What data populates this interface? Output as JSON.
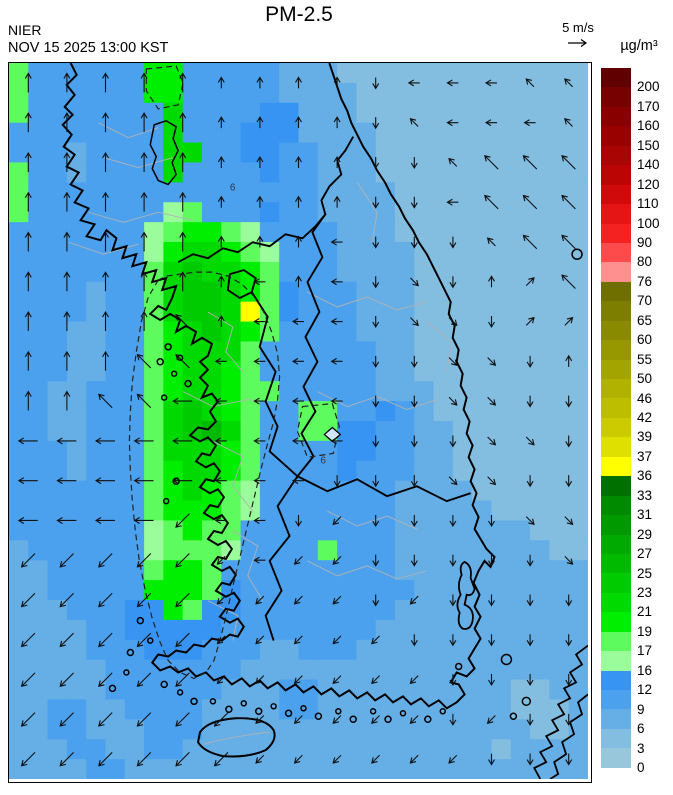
{
  "header": {
    "org": "NIER",
    "datetime": "NOV 15 2025 13:00 KST",
    "title": "PM-2.5"
  },
  "wind_legend": {
    "speed_label": "5 m/s"
  },
  "colorbar": {
    "unit": "µg/m³",
    "labels": [
      "200",
      "170",
      "160",
      "150",
      "140",
      "120",
      "110",
      "100",
      "90",
      "80",
      "76",
      "70",
      "65",
      "60",
      "55",
      "50",
      "46",
      "42",
      "39",
      "37",
      "36",
      "33",
      "31",
      "29",
      "27",
      "25",
      "23",
      "21",
      "19",
      "17",
      "16",
      "12",
      "9",
      "6",
      "3",
      "0"
    ],
    "colors": [
      "#600000",
      "#770000",
      "#880000",
      "#990000",
      "#aa0505",
      "#bb0505",
      "#d00a0a",
      "#e51515",
      "#f52222",
      "#fd4b4b",
      "#fe9090",
      "#6f6f00",
      "#7d7d00",
      "#8a8a00",
      "#979700",
      "#a4a400",
      "#b1b100",
      "#bebe00",
      "#cbcb00",
      "#e0e000",
      "#ffff00",
      "#007000",
      "#008a00",
      "#009a00",
      "#00aa00",
      "#00ba00",
      "#00ca00",
      "#00da00",
      "#00ee00",
      "#5efb5e",
      "#9afc9a",
      "#3894f2",
      "#4ba1ee",
      "#65aee6",
      "#83bde0",
      "#98c7dc"
    ]
  },
  "map": {
    "contour_labels": [
      "6",
      "6"
    ],
    "palette": {
      "0": "#98c7dc",
      "1": "#83bde0",
      "2": "#65aee6",
      "3": "#4ba1ee",
      "4": "#3894f2",
      "5": "#9afc9a",
      "6": "#5efb5e",
      "7": "#00ee00",
      "8": "#00da00",
      "9": "#00ca00",
      "a": "#00ba00",
      "b": "#00aa00",
      "c": "#009a00",
      "y": "#ffff00"
    },
    "grid_cols": 30,
    "grid_rows": 36,
    "grid": [
      "633333377333332221111111111111",
      "633333377333332222111111111111",
      "633333338333344222111111111111",
      "333333338333444222211111111111",
      "333233338833443322211111111111",
      "633233338333343322211111111111",
      "633333333333333322221111111111",
      "633333335633343322221111111111",
      "333333356776533332221111111111",
      "333333357887653332222111111111",
      "333333368988763332222111111111",
      "333323368998764333222111111111",
      "333323368998y64333222111111111",
      "333223367898763333222111111111",
      "333223367888633333322111111111",
      "333223367887633333322111111111",
      "332233367887663333322211111111",
      "332233368987633663343211111111",
      "3322333689a8633664433221111111",
      "333233368887633334433221111111",
      "333233367887633334333221111111",
      "333333367876533333332222111111",
      "333333367776533333332222211111",
      "333333356766333333332222222111",
      "233333356665333363332222222211",
      "223333367763333333332222222222",
      "223333377764333333333222222222",
      "222333447644333333332222222222",
      "222233444443333333322222222222",
      "222233344433322333222222222222",
      "222223333333222222222222222222",
      "222223333332223322222222221122",
      "223322333322223322222222221112",
      "223322233322222222222222222112",
      "222332233222222222222222212222",
      "222233222222222222222222222222"
    ],
    "arrows": {
      "cols": 15,
      "rows": 18,
      "grid": [
        "NNNNNnnnnswwwdd",
        "NNNNNnnnnsdwwwd",
        "NNNNNnnnnssdDDD",
        "NNNNNnnnnsswDDD",
        "NNNNNnnnwsssdDD",
        "NNNNNnwnwsbsnaD",
        "NNNNDnwwwsbbsaa",
        "NNNDDwwwwssbbsn",
        "NNDDWwwwwssbbss",
        "WWWWWwwwwsssbbs",
        "WWWWWwwwsssbbss",
        "WWWWCwwscssssbb",
        "CCCCCcwccsssssb",
        "CCCCCccccscssss",
        "CCCCCcccccsssss",
        "CCCCCccccccssss",
        "CCCCCCcccccscss",
        "CCCCCCccccccsss"
      ]
    }
  },
  "chart_data": {
    "type": "heatmap",
    "title": "PM-2.5",
    "unit": "µg/m³",
    "source_label": "NIER",
    "timestamp_label": "NOV 15 2025 13:00 KST",
    "wind_reference": "5 m/s",
    "legend_position": "right",
    "colorbar_levels": [
      0,
      3,
      6,
      9,
      12,
      16,
      17,
      19,
      21,
      23,
      25,
      27,
      29,
      31,
      33,
      36,
      37,
      39,
      42,
      46,
      50,
      55,
      60,
      65,
      70,
      76,
      80,
      90,
      100,
      110,
      120,
      140,
      150,
      160,
      170,
      200
    ]
  }
}
